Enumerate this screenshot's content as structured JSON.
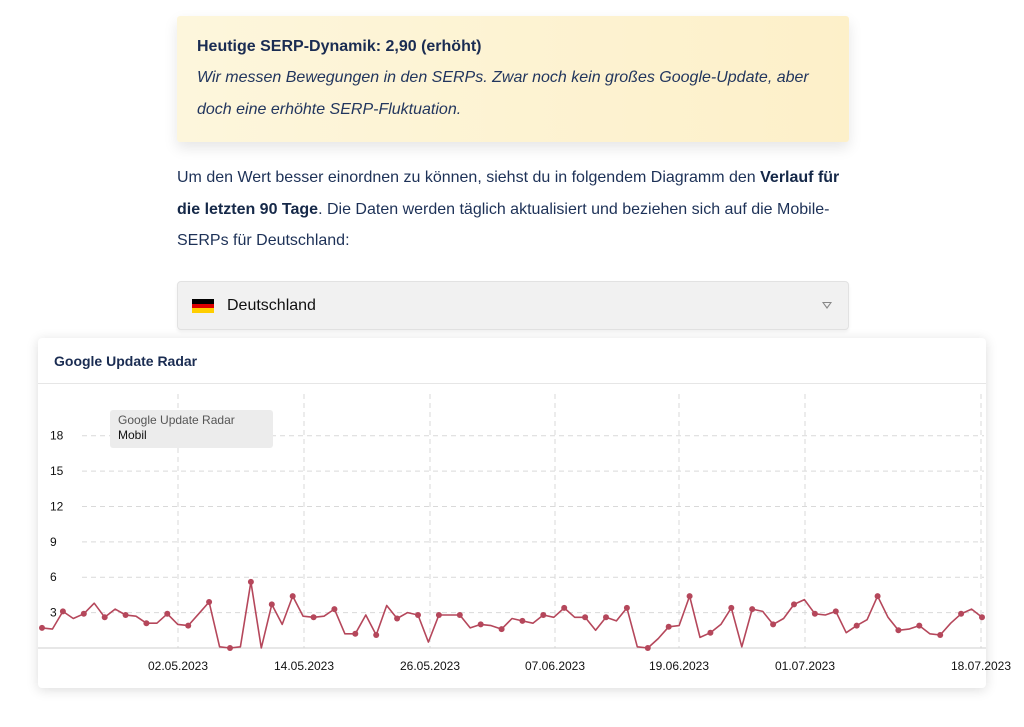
{
  "info": {
    "title": "Heutige SERP-Dynamik: 2,90 (erhöht)",
    "text": "Wir messen Bewegungen in den SERPs. Zwar noch kein großes Google-Update, aber doch eine erhöhte SERP-Fluktuation."
  },
  "intro": {
    "part1": "Um den Wert besser einordnen zu können, siehst du in folgendem Diagramm den ",
    "bold": "Verlauf für die letzten 90 Tage",
    "part2": ". Die Daten werden täglich aktualisiert und beziehen sich auf die Mobile-SERPs für Deutschland:"
  },
  "country_select": {
    "value": "Deutschland",
    "flag_colors": [
      "#000000",
      "#dd0000",
      "#ffce00"
    ]
  },
  "card": {
    "title": "Google Update Radar"
  },
  "tooltip": {
    "title": "Google Update Radar",
    "series": "Mobil"
  },
  "colors": {
    "line": "#b5475b",
    "grid": "#d9d9d9",
    "text_dark": "#1a2c52"
  },
  "chart_data": {
    "type": "line",
    "title": "Google Update Radar",
    "xlabel": "",
    "ylabel": "",
    "ylim": [
      0,
      19.5
    ],
    "yticks": [
      3,
      6,
      9,
      12,
      15,
      18
    ],
    "xticks": [
      "02.05.2023",
      "14.05.2023",
      "26.05.2023",
      "07.06.2023",
      "19.06.2023",
      "01.07.2023",
      "18.07.2023"
    ],
    "grid": true,
    "legend": "none",
    "series": [
      {
        "name": "Mobil",
        "values": [
          1.7,
          1.6,
          3.1,
          2.5,
          2.9,
          3.8,
          2.6,
          3.3,
          2.8,
          2.7,
          2.1,
          2.1,
          2.9,
          2.0,
          1.9,
          2.9,
          3.9,
          0.1,
          0.0,
          0.1,
          5.6,
          0.0,
          3.7,
          2.0,
          4.4,
          2.7,
          2.6,
          2.7,
          3.3,
          1.2,
          1.2,
          2.8,
          1.1,
          3.6,
          2.5,
          3.0,
          2.8,
          0.5,
          2.8,
          2.8,
          2.8,
          1.7,
          2.0,
          1.9,
          1.6,
          2.5,
          2.3,
          2.1,
          2.8,
          2.6,
          3.4,
          2.6,
          2.6,
          1.5,
          2.6,
          2.3,
          3.4,
          0.1,
          0.0,
          0.8,
          1.8,
          1.9,
          4.4,
          0.9,
          1.3,
          2.0,
          3.4,
          0.1,
          3.3,
          3.1,
          2.0,
          2.5,
          3.7,
          4.1,
          2.9,
          2.8,
          3.1,
          1.3,
          1.9,
          2.4,
          4.4,
          2.6,
          1.5,
          1.6,
          1.9,
          1.2,
          1.1,
          2.1,
          2.9,
          3.3,
          2.6
        ]
      }
    ]
  }
}
